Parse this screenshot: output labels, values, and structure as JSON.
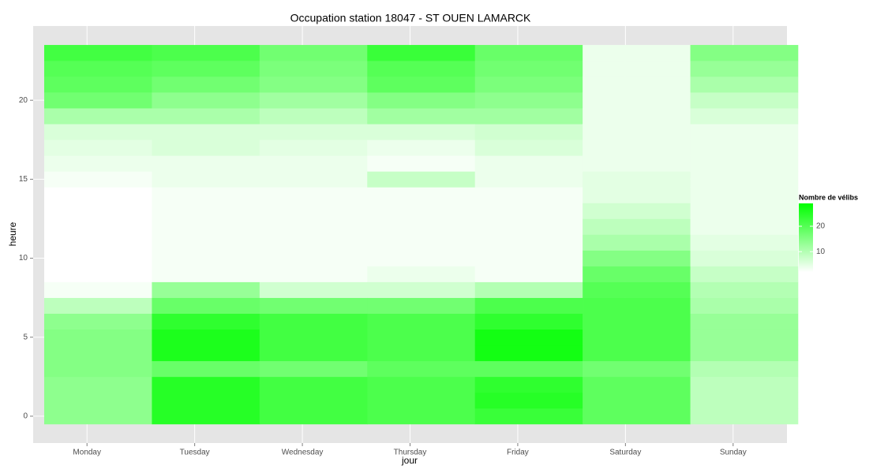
{
  "chart_data": {
    "type": "heatmap",
    "title": "Occupation station 18047 - ST OUEN LAMARCK",
    "x_label": "jour",
    "y_label": "heure",
    "categories": [
      "Monday",
      "Tuesday",
      "Wednesday",
      "Thursday",
      "Friday",
      "Saturday",
      "Sunday"
    ],
    "y": [
      0,
      1,
      2,
      3,
      4,
      5,
      6,
      7,
      8,
      9,
      10,
      11,
      12,
      13,
      14,
      15,
      16,
      17,
      18,
      19,
      20,
      21,
      22,
      23
    ],
    "values": [
      [
        14,
        14,
        14,
        15,
        15,
        15,
        14,
        9,
        3,
        2,
        2,
        2,
        2,
        2,
        2,
        3,
        4,
        5,
        6,
        11,
        17,
        19,
        20,
        22
      ],
      [
        25,
        25,
        25,
        18,
        26,
        26,
        24,
        18,
        13,
        3,
        3,
        3,
        3,
        3,
        3,
        4,
        4,
        6,
        6,
        11,
        14,
        17,
        19,
        21
      ],
      [
        22,
        22,
        22,
        17,
        22,
        22,
        22,
        17,
        7,
        3,
        3,
        3,
        3,
        3,
        3,
        4,
        4,
        5,
        6,
        9,
        12,
        15,
        16,
        17
      ],
      [
        21,
        21,
        21,
        19,
        21,
        21,
        21,
        17,
        7,
        4,
        3,
        3,
        3,
        3,
        3,
        8,
        3,
        4,
        6,
        12,
        15,
        19,
        20,
        23
      ],
      [
        23,
        25,
        24,
        19,
        27,
        27,
        24,
        21,
        10,
        3,
        3,
        3,
        3,
        3,
        3,
        4,
        4,
        6,
        7,
        12,
        14,
        16,
        17,
        18
      ],
      [
        19,
        19,
        19,
        17,
        21,
        21,
        21,
        21,
        20,
        18,
        15,
        11,
        9,
        7,
        5,
        5,
        4,
        4,
        4,
        4,
        4,
        4,
        4,
        4
      ],
      [
        9,
        9,
        9,
        10,
        13,
        13,
        13,
        11,
        10,
        8,
        6,
        5,
        4,
        4,
        4,
        4,
        4,
        4,
        4,
        6,
        8,
        11,
        13,
        15
      ]
    ],
    "ylim": [
      -1.7,
      24.7
    ],
    "yticks": [
      0,
      5,
      10,
      15,
      20
    ],
    "grid": true,
    "legend_title": "Nombre de vélibs",
    "clim": [
      2,
      29
    ],
    "cticks": [
      10,
      20
    ],
    "low_color": "#ffffff",
    "high_color": "#00ff00"
  }
}
